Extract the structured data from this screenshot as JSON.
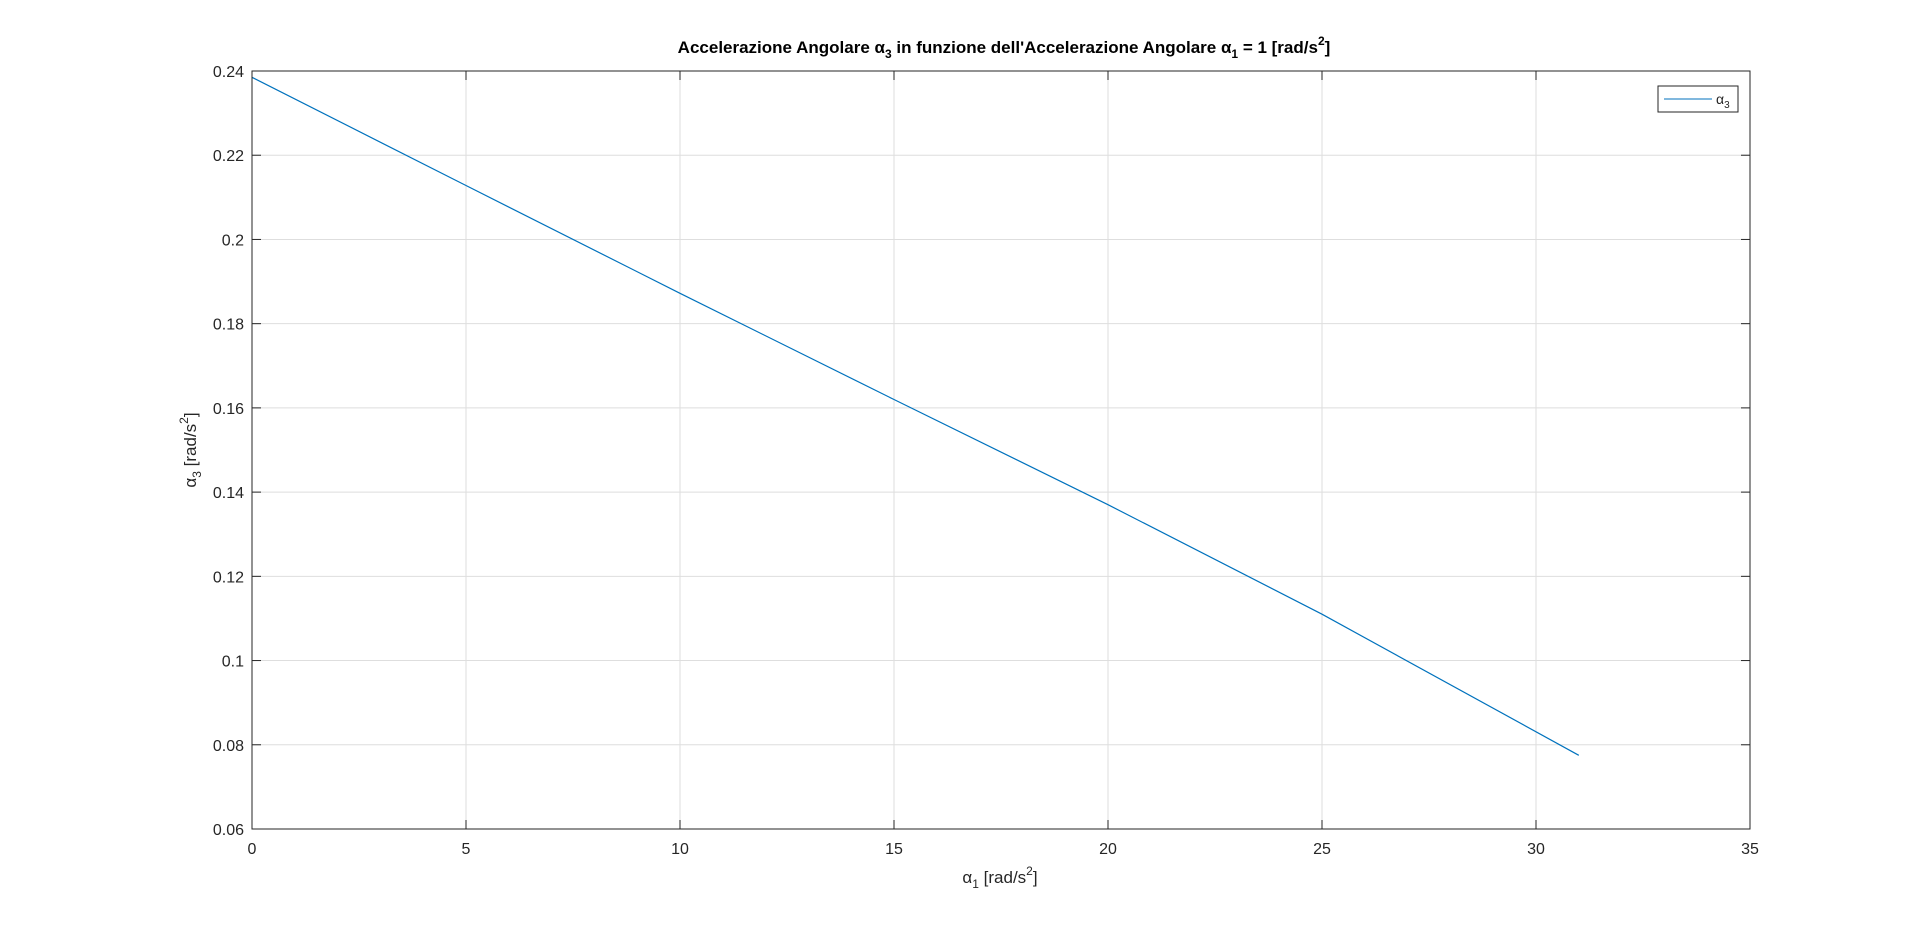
{
  "chart_data": {
    "type": "line",
    "title": {
      "part1": "Accelerazione Angolare α",
      "sub1": "3",
      "part2": " in funzione dell'Accelerazione Angolare α",
      "sub2": "1",
      "part3": " = 1 [rad/s",
      "sup": "2",
      "part4": "]"
    },
    "xlabel": {
      "base": "α",
      "sub": "1",
      "unit": " [rad/s",
      "sup": "2",
      "close": "]"
    },
    "ylabel": {
      "base": "α",
      "sub": "3",
      "unit": " [rad/s",
      "sup": "2",
      "close": "]"
    },
    "xlim": [
      0,
      35
    ],
    "ylim": [
      0.06,
      0.24
    ],
    "xticks": [
      0,
      5,
      10,
      15,
      20,
      25,
      30,
      35
    ],
    "yticks": [
      0.06,
      0.08,
      0.1,
      0.12,
      0.14,
      0.16,
      0.18,
      0.2,
      0.22,
      0.24
    ],
    "xtick_labels": [
      "0",
      "5",
      "10",
      "15",
      "20",
      "25",
      "30",
      "35"
    ],
    "ytick_labels": [
      "0.06",
      "0.08",
      "0.1",
      "0.12",
      "0.14",
      "0.16",
      "0.18",
      "0.2",
      "0.22",
      "0.24"
    ],
    "grid": true,
    "legend_position": "top-right",
    "series": [
      {
        "name": {
          "base": "α",
          "sub": "3"
        },
        "color": "#0072bd",
        "x": [
          0,
          5,
          10,
          15,
          20,
          25,
          31
        ],
        "y": [
          0.2385,
          0.2128,
          0.1872,
          0.162,
          0.137,
          0.111,
          0.0775
        ]
      }
    ]
  }
}
